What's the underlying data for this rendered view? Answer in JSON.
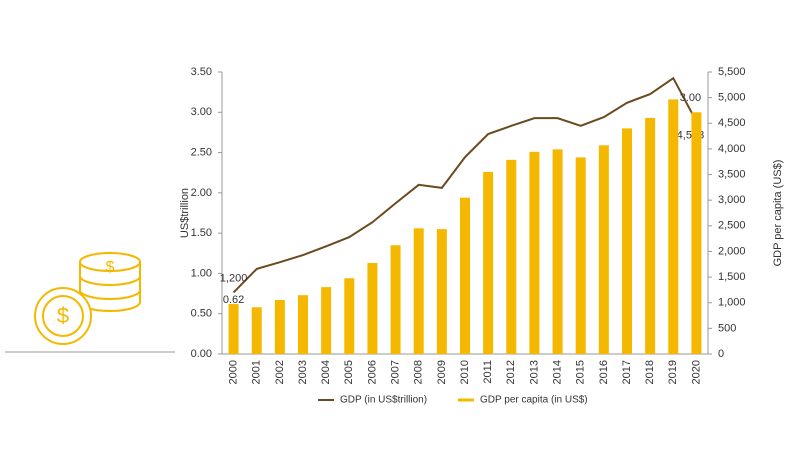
{
  "chart_data": {
    "type": "bar_line",
    "categories": [
      "2000",
      "2001",
      "2002",
      "2003",
      "2004",
      "2005",
      "2006",
      "2007",
      "2008",
      "2009",
      "2010",
      "2011",
      "2012",
      "2013",
      "2014",
      "2015",
      "2016",
      "2017",
      "2018",
      "2019",
      "2020"
    ],
    "series": [
      {
        "name": "GDP (in US$trillion)",
        "color": "#6b4a1f",
        "axis": "y2",
        "values": [
          1200,
          1660,
          1790,
          1930,
          2100,
          2280,
          2570,
          2940,
          3300,
          3240,
          3840,
          4290,
          4450,
          4600,
          4600,
          4450,
          4620,
          4900,
          5070,
          5380,
          4533
        ],
        "value_labels": [
          "1,200",
          null,
          null,
          null,
          null,
          null,
          null,
          null,
          null,
          null,
          null,
          null,
          null,
          null,
          null,
          null,
          null,
          null,
          null,
          null,
          "4,533"
        ]
      },
      {
        "name": "GDP per capita (in US$)",
        "color": "#f5b800",
        "values": [
          0.62,
          0.58,
          0.67,
          0.73,
          0.83,
          0.94,
          1.13,
          1.35,
          1.56,
          1.55,
          1.94,
          2.26,
          2.41,
          2.51,
          2.54,
          2.44,
          2.59,
          2.8,
          2.93,
          3.16,
          3.0
        ],
        "value_labels": [
          "0.62",
          null,
          null,
          null,
          null,
          null,
          null,
          null,
          null,
          null,
          null,
          null,
          null,
          null,
          null,
          null,
          null,
          null,
          null,
          null,
          "3.00"
        ]
      }
    ],
    "y_label": "US$trillion",
    "y2_label": "GDP per capita (US$)",
    "ylim": [
      0,
      3.5
    ],
    "yticks": [
      {
        "value": 0,
        "label": "0.00"
      },
      {
        "value": 0.5,
        "label": "0.50"
      },
      {
        "value": 1,
        "label": "1.00"
      },
      {
        "value": 1.5,
        "label": "1.50"
      },
      {
        "value": 2,
        "label": "2.00"
      },
      {
        "value": 2.5,
        "label": "2.50"
      },
      {
        "value": 3,
        "label": "3.00"
      },
      {
        "value": 3.5,
        "label": "3.50"
      }
    ],
    "y2lim": [
      0,
      5500
    ],
    "y2ticks": [
      0,
      500,
      {
        "value": 1000,
        "label": "1,000"
      },
      {
        "value": 1500,
        "label": "1,500"
      },
      {
        "value": 2000,
        "label": "2,000"
      },
      {
        "value": 2500,
        "label": "2,500"
      },
      {
        "value": 3000,
        "label": "3,000"
      },
      {
        "value": 3500,
        "label": "3,500"
      },
      {
        "value": 4000,
        "label": "4,000"
      },
      {
        "value": 4500,
        "label": "4,500"
      },
      {
        "value": 5000,
        "label": "5,000"
      },
      {
        "value": 5500,
        "label": "5,500"
      }
    ],
    "legend": "bottom"
  }
}
